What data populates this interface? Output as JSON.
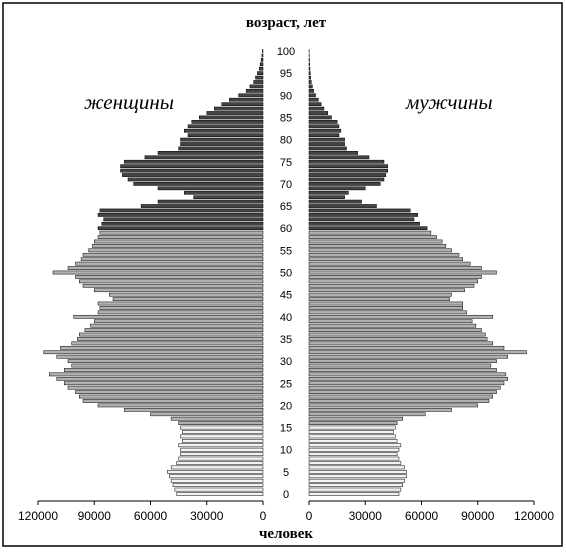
{
  "chart_data": {
    "type": "bar",
    "title": "",
    "ylabel": "возраст, лет",
    "xlabel": "человек",
    "left_label": "женщины",
    "right_label": "мужчины",
    "age_ticks": [
      0,
      5,
      10,
      15,
      20,
      25,
      30,
      35,
      40,
      45,
      50,
      55,
      60,
      65,
      70,
      75,
      80,
      85,
      90,
      95,
      100
    ],
    "x_ticks_left": [
      "120000",
      "90000",
      "60000",
      "30000",
      "0"
    ],
    "x_ticks_right": [
      "0",
      "30000",
      "60000",
      "90000",
      "120000"
    ],
    "xlim": [
      0,
      120000
    ],
    "ylim": [
      0,
      100
    ],
    "grid": false,
    "ages": [
      0,
      1,
      2,
      3,
      4,
      5,
      6,
      7,
      8,
      9,
      10,
      11,
      12,
      13,
      14,
      15,
      16,
      17,
      18,
      19,
      20,
      21,
      22,
      23,
      24,
      25,
      26,
      27,
      28,
      29,
      30,
      31,
      32,
      33,
      34,
      35,
      36,
      37,
      38,
      39,
      40,
      41,
      42,
      43,
      44,
      45,
      46,
      47,
      48,
      49,
      50,
      51,
      52,
      53,
      54,
      55,
      56,
      57,
      58,
      59,
      60,
      61,
      62,
      63,
      64,
      65,
      66,
      67,
      68,
      69,
      70,
      71,
      72,
      73,
      74,
      75,
      76,
      77,
      78,
      79,
      80,
      81,
      82,
      83,
      84,
      85,
      86,
      87,
      88,
      89,
      90,
      91,
      92,
      93,
      94,
      95,
      96,
      97,
      98,
      99,
      100
    ],
    "series": [
      {
        "name": "женщины",
        "color_band_1": "#f2f2f2",
        "color_band_2": "#b0b0b0",
        "color_band_3": "#444444",
        "values": [
          46000,
          47000,
          48000,
          49000,
          50000,
          51000,
          49000,
          46000,
          45000,
          44000,
          44000,
          45000,
          43000,
          44000,
          43000,
          44000,
          45000,
          49000,
          60000,
          74000,
          88000,
          96000,
          98000,
          100000,
          104000,
          106000,
          110000,
          114000,
          106000,
          102000,
          104000,
          110000,
          117000,
          108000,
          102000,
          99000,
          98000,
          95000,
          92000,
          90000,
          101000,
          88000,
          87000,
          88000,
          80000,
          82000,
          90000,
          96000,
          98000,
          100000,
          112000,
          104000,
          100000,
          97000,
          96000,
          93000,
          91000,
          90000,
          88000,
          87000,
          88000,
          86000,
          85000,
          88000,
          87000,
          65000,
          56000,
          37000,
          42000,
          56000,
          69000,
          72000,
          75000,
          76000,
          76000,
          74000,
          63000,
          56000,
          45000,
          44000,
          44000,
          40000,
          42000,
          40000,
          38000,
          34000,
          30000,
          26000,
          22000,
          18000,
          13000,
          9000,
          7000,
          5000,
          4000,
          3000,
          2000,
          1500,
          1000,
          600,
          300
        ]
      },
      {
        "name": "мужчины",
        "color_band_1": "#f2f2f2",
        "color_band_2": "#b0b0b0",
        "color_band_3": "#444444",
        "values": [
          48000,
          49000,
          50000,
          51000,
          52000,
          52000,
          51000,
          49000,
          48000,
          47000,
          48000,
          49000,
          47000,
          46000,
          45000,
          46000,
          47000,
          50000,
          62000,
          76000,
          90000,
          96000,
          98000,
          100000,
          102000,
          104000,
          106000,
          105000,
          100000,
          97000,
          100000,
          106000,
          116000,
          104000,
          98000,
          95000,
          94000,
          92000,
          89000,
          87000,
          98000,
          84000,
          82000,
          82000,
          75000,
          76000,
          83000,
          88000,
          90000,
          92000,
          100000,
          92000,
          86000,
          82000,
          80000,
          76000,
          73000,
          71000,
          68000,
          65000,
          63000,
          59000,
          56000,
          58000,
          54000,
          36000,
          28000,
          19000,
          21000,
          30000,
          38000,
          40000,
          41000,
          42000,
          42000,
          40000,
          32000,
          26000,
          20000,
          19000,
          19000,
          16000,
          17000,
          16000,
          15000,
          12000,
          10000,
          8000,
          6500,
          5000,
          3500,
          2500,
          1800,
          1200,
          900,
          700,
          500,
          350,
          250,
          150,
          80
        ]
      }
    ]
  }
}
